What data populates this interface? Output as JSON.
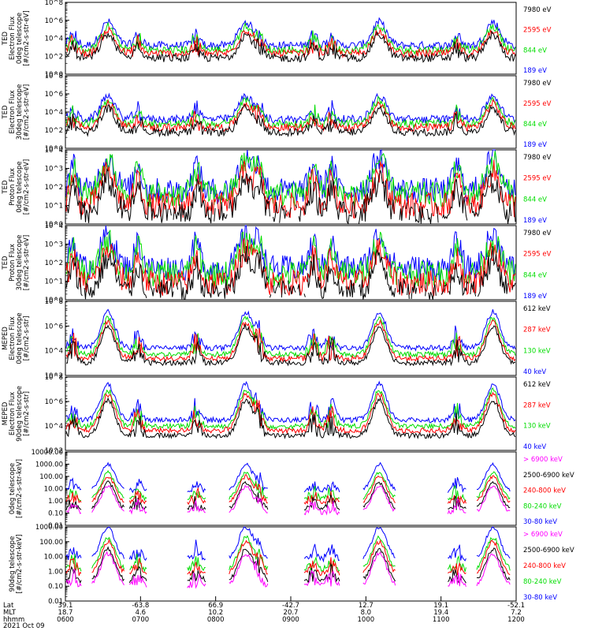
{
  "chart_data": {
    "type": "line",
    "x_axis": {
      "rows": [
        {
          "label": "Lat",
          "values": [
            "39.1",
            "-63.8",
            "66.9",
            "-42.7",
            "12.7",
            "19.1",
            "-52.1"
          ]
        },
        {
          "label": "MLT",
          "values": [
            "18.7",
            "4.6",
            "10.2",
            "20.7",
            "8.0",
            "19.4",
            "7.2"
          ]
        },
        {
          "label": "hhmm",
          "values": [
            "0600",
            "0700",
            "0800",
            "0900",
            "1000",
            "1100",
            "1200"
          ]
        }
      ],
      "date": "2021 Oct 09",
      "time_range": [
        "0600",
        "1200"
      ]
    },
    "panels": [
      {
        "ylabel": [
          "TED",
          "Electron Flux",
          "0deg telescope",
          "[#/cm2-s-str-eV]"
        ],
        "y_ticks": [
          "10^0",
          "10^2",
          "10^4",
          "10^6",
          "10^8"
        ],
        "log_range": [
          0,
          8
        ],
        "channels": [
          {
            "label": "7980 eV",
            "color": "#000000",
            "profile": "ted_e",
            "level": 1.8
          },
          {
            "label": "2595 eV",
            "color": "#ff0000",
            "profile": "ted_e",
            "level": 2.3
          },
          {
            "label": "844 eV",
            "color": "#00dd00",
            "profile": "ted_e",
            "level": 2.7
          },
          {
            "label": "189 eV",
            "color": "#0000ff",
            "profile": "ted_e",
            "level": 3.2
          }
        ]
      },
      {
        "ylabel": [
          "TED",
          "Electron Flux",
          "30deg telescope",
          "[#/cm2-s-str-eV]"
        ],
        "y_ticks": [
          "10^0",
          "10^2",
          "10^4",
          "10^6",
          "10^8"
        ],
        "log_range": [
          0,
          8
        ],
        "channels": [
          {
            "label": "7980 eV",
            "color": "#000000",
            "profile": "ted_e",
            "level": 1.8
          },
          {
            "label": "2595 eV",
            "color": "#ff0000",
            "profile": "ted_e",
            "level": 2.3
          },
          {
            "label": "844 eV",
            "color": "#00dd00",
            "profile": "ted_e",
            "level": 2.7
          },
          {
            "label": "189 eV",
            "color": "#0000ff",
            "profile": "ted_e",
            "level": 3.2
          }
        ]
      },
      {
        "ylabel": [
          "TED",
          "Proton Flux",
          "0deg telescope",
          "[#/cm2-s-str-eV]"
        ],
        "y_ticks": [
          "10^0",
          "10^1",
          "10^2",
          "10^3",
          "10^4"
        ],
        "log_range": [
          0,
          4
        ],
        "channels": [
          {
            "label": "7980 eV",
            "color": "#000000",
            "profile": "ted_p",
            "level": 1.7
          },
          {
            "label": "2595 eV",
            "color": "#ff0000",
            "profile": "ted_p",
            "level": 2.2
          },
          {
            "label": "844 eV",
            "color": "#00dd00",
            "profile": "ted_p",
            "level": 2.8
          },
          {
            "label": "189 eV",
            "color": "#0000ff",
            "profile": "ted_p",
            "level": 3.0
          }
        ]
      },
      {
        "ylabel": [
          "TED",
          "Proton Flux",
          "30deg telescope",
          "[#/cm2-s-str-eV]"
        ],
        "y_ticks": [
          "10^0",
          "10^1",
          "10^2",
          "10^3",
          "10^4"
        ],
        "log_range": [
          0,
          4
        ],
        "channels": [
          {
            "label": "7980 eV",
            "color": "#000000",
            "profile": "ted_p",
            "level": 1.6
          },
          {
            "label": "2595 eV",
            "color": "#ff0000",
            "profile": "ted_p",
            "level": 2.1
          },
          {
            "label": "844 eV",
            "color": "#00dd00",
            "profile": "ted_p",
            "level": 2.6
          },
          {
            "label": "189 eV",
            "color": "#0000ff",
            "profile": "ted_p",
            "level": 2.9
          }
        ]
      },
      {
        "ylabel": [
          "MEPED",
          "Electron Flux",
          "0deg telescope",
          "[#/cm2-s-str]"
        ],
        "y_ticks": [
          "10^2",
          "10^4",
          "10^6",
          "10^8"
        ],
        "log_range": [
          1,
          8
        ],
        "channels": [
          {
            "label": "612 keV",
            "color": "#000000",
            "profile": "meped_e",
            "level": 2.2
          },
          {
            "label": "287 keV",
            "color": "#ff0000",
            "profile": "meped_e",
            "level": 2.6
          },
          {
            "label": "130 keV",
            "color": "#00dd00",
            "profile": "meped_e",
            "level": 3.0
          },
          {
            "label": "40 keV",
            "color": "#0000ff",
            "profile": "meped_e",
            "level": 3.6
          }
        ]
      },
      {
        "ylabel": [
          "MEPED",
          "Electron Flux",
          "90deg telescope",
          "[#/cm2-s-str]"
        ],
        "y_ticks": [
          "10^2",
          "10^4",
          "10^6",
          "10^8"
        ],
        "log_range": [
          1,
          8
        ],
        "channels": [
          {
            "label": "612 keV",
            "color": "#000000",
            "profile": "meped_e",
            "level": 2.4
          },
          {
            "label": "287 keV",
            "color": "#ff0000",
            "profile": "meped_e",
            "level": 2.9
          },
          {
            "label": "130 keV",
            "color": "#00dd00",
            "profile": "meped_e",
            "level": 3.3
          },
          {
            "label": "40 keV",
            "color": "#0000ff",
            "profile": "meped_e",
            "level": 3.9
          }
        ]
      },
      {
        "ylabel": [
          "0deg telescope",
          "[#/cm2-s-str-keV]"
        ],
        "y_ticks": [
          "0.01",
          "0.10",
          "1.00",
          "10.00",
          "100.00",
          "1000.00",
          "10000.00"
        ],
        "log_range": [
          -2,
          4
        ],
        "channels": [
          {
            "label": "> 6900 keV",
            "color": "#ff00ff",
            "profile": "meped_p",
            "level": -0.6
          },
          {
            "label": "2500-6900 keV",
            "color": "#000000",
            "profile": "meped_p",
            "level": -0.3
          },
          {
            "label": "240-800 keV",
            "color": "#ff0000",
            "profile": "meped_p",
            "level": 0.2
          },
          {
            "label": "80-240 keV",
            "color": "#00dd00",
            "profile": "meped_p",
            "level": 0.5
          },
          {
            "label": "30-80 keV",
            "color": "#0000ff",
            "profile": "meped_p",
            "level": 1.2
          }
        ]
      },
      {
        "ylabel": [
          "90deg telescope",
          "[#/cm2-s-str-keV]"
        ],
        "y_ticks": [
          "0.01",
          "0.10",
          "1.00",
          "10.00",
          "100.00",
          "1000.00"
        ],
        "log_range": [
          -2,
          3
        ],
        "channels": [
          {
            "label": "> 6900 keV",
            "color": "#ff00ff",
            "profile": "meped_p",
            "level": -0.6
          },
          {
            "label": "2500-6900 keV",
            "color": "#000000",
            "profile": "meped_p",
            "level": -0.3
          },
          {
            "label": "240-800 keV",
            "color": "#ff0000",
            "profile": "meped_p",
            "level": 0.2
          },
          {
            "label": "80-240 keV",
            "color": "#00dd00",
            "profile": "meped_p",
            "level": 0.5
          },
          {
            "label": "30-80 keV",
            "color": "#0000ff",
            "profile": "meped_p",
            "level": 1.2
          }
        ]
      }
    ]
  }
}
